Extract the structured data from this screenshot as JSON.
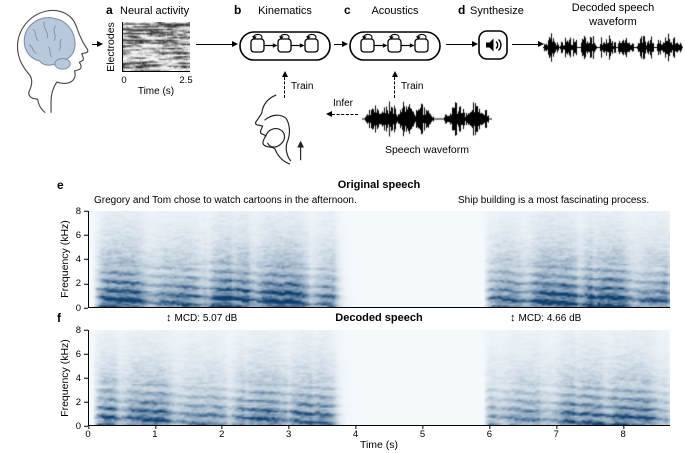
{
  "pipeline": {
    "a": {
      "letter": "a",
      "title": "Neural activity",
      "ylabel": "Electrodes",
      "xlabel": "Time (s)",
      "xticks": [
        "0",
        "2.5"
      ]
    },
    "b": {
      "letter": "b",
      "title": "Kinematics",
      "train_label": "Train"
    },
    "c": {
      "letter": "c",
      "title": "Acoustics",
      "train_label": "Train"
    },
    "d": {
      "letter": "d",
      "title": "Synthesize"
    },
    "decoded_waveform_label": "Decoded speech waveform",
    "infer_label": "Infer",
    "speech_waveform_label": "Speech waveform"
  },
  "spectrograms": {
    "e": {
      "letter": "e",
      "title": "Original speech",
      "caption_left": "Gregory and Tom chose to watch cartoons in the afternoon.",
      "caption_right": "Ship building is a most fascinating process.",
      "ylabel": "Frequency (kHz)"
    },
    "f": {
      "letter": "f",
      "title": "Decoded speech",
      "arrow_glyph": "↕",
      "mcd_left": "MCD: 5.07 dB",
      "mcd_right": "MCD: 4.66 dB",
      "ylabel": "Frequency (kHz)",
      "xlabel": "Time (s)"
    }
  },
  "colors": {
    "ink": "#000000",
    "spectrogram_dark": "#0d3e6e",
    "spectrogram_light": "#f4f9fc",
    "brain_fill": "#b9c8db",
    "brain_stroke": "#7e94b2"
  },
  "chart_data": [
    {
      "id": "neural-activity",
      "type": "heatmap",
      "title": "Neural activity",
      "xlabel": "Time (s)",
      "ylabel": "Electrodes",
      "xlim": [
        0,
        2.5
      ],
      "xticks": [
        0,
        2.5
      ]
    },
    {
      "id": "original-speech",
      "type": "heatmap",
      "title": "Original speech",
      "ylabel": "Frequency (kHz)",
      "ylim": [
        0,
        8
      ],
      "yticks": [
        0,
        2,
        4,
        6,
        8
      ],
      "xlim": [
        0,
        8.7
      ],
      "annotations": [
        "Gregory and Tom chose to watch cartoons in the afternoon.",
        "Ship building is a most fascinating process."
      ],
      "speech_segments": [
        [
          0.05,
          3.65
        ],
        [
          5.9,
          8.65
        ]
      ]
    },
    {
      "id": "decoded-speech",
      "type": "heatmap",
      "title": "Decoded speech",
      "ylabel": "Frequency (kHz)",
      "ylim": [
        0,
        8
      ],
      "yticks": [
        0,
        2,
        4,
        6,
        8
      ],
      "xlabel": "Time (s)",
      "xticks": [
        0,
        1,
        2,
        3,
        4,
        5,
        6,
        7,
        8
      ],
      "xlim": [
        0,
        8.7
      ],
      "annotations": [
        "MCD: 5.07 dB",
        "MCD: 4.66 dB"
      ],
      "speech_segments": [
        [
          0.05,
          3.65
        ],
        [
          5.9,
          8.65
        ]
      ]
    }
  ]
}
